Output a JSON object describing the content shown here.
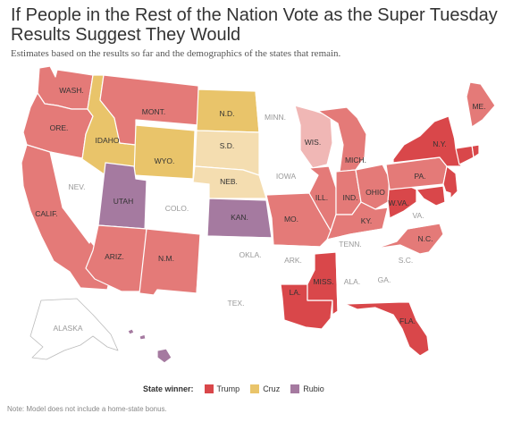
{
  "title": "If People in the Rest of the Nation Vote as the Super Tuesday Results Suggest They Would",
  "subtitle": "Estimates based on the results so far and the demographics of the states that remain.",
  "colors": {
    "trump_strong": "#d9474a",
    "trump": "#e47a78",
    "trump_light": "#f0b7b5",
    "cruz": "#e9c46a",
    "cruz_light": "#f4ddb0",
    "rubio": "#a57aa0",
    "none": "#ffffff"
  },
  "states": {
    "wash": "WASH.",
    "ore": "ORE.",
    "calif": "CALIF.",
    "nev": "NEV.",
    "idaho": "IDAHO",
    "mont": "MONT.",
    "wyo": "WYO.",
    "utah": "UTAH",
    "colo": "COLO.",
    "ariz": "ARIZ.",
    "nm": "N.M.",
    "nd": "N.D.",
    "sd": "S.D.",
    "neb": "NEB.",
    "kan": "KAN.",
    "okla": "OKLA.",
    "tex": "TEX.",
    "minn": "MINN.",
    "iowa": "IOWA",
    "mo": "MO.",
    "ark": "ARK.",
    "la": "LA.",
    "wis": "WIS.",
    "ill": "ILL.",
    "mich": "MICH.",
    "ind": "IND.",
    "ohio": "OHIO",
    "ky": "KY.",
    "tenn": "TENN.",
    "miss": "MISS.",
    "ala": "ALA.",
    "ga": "GA.",
    "fla": "FLA.",
    "sc": "S.C.",
    "nc": "N.C.",
    "va": "VA.",
    "wva": "W.VA.",
    "pa": "PA.",
    "ny": "N.Y.",
    "me": "ME.",
    "alaska": "ALASKA"
  },
  "legend": {
    "heading": "State winner:",
    "items": [
      {
        "label": "Trump",
        "color": "#d9474a"
      },
      {
        "label": "Cruz",
        "color": "#e9c46a"
      },
      {
        "label": "Rubio",
        "color": "#a57aa0"
      }
    ]
  },
  "note": "Note: Model does not include a home-state bonus."
}
